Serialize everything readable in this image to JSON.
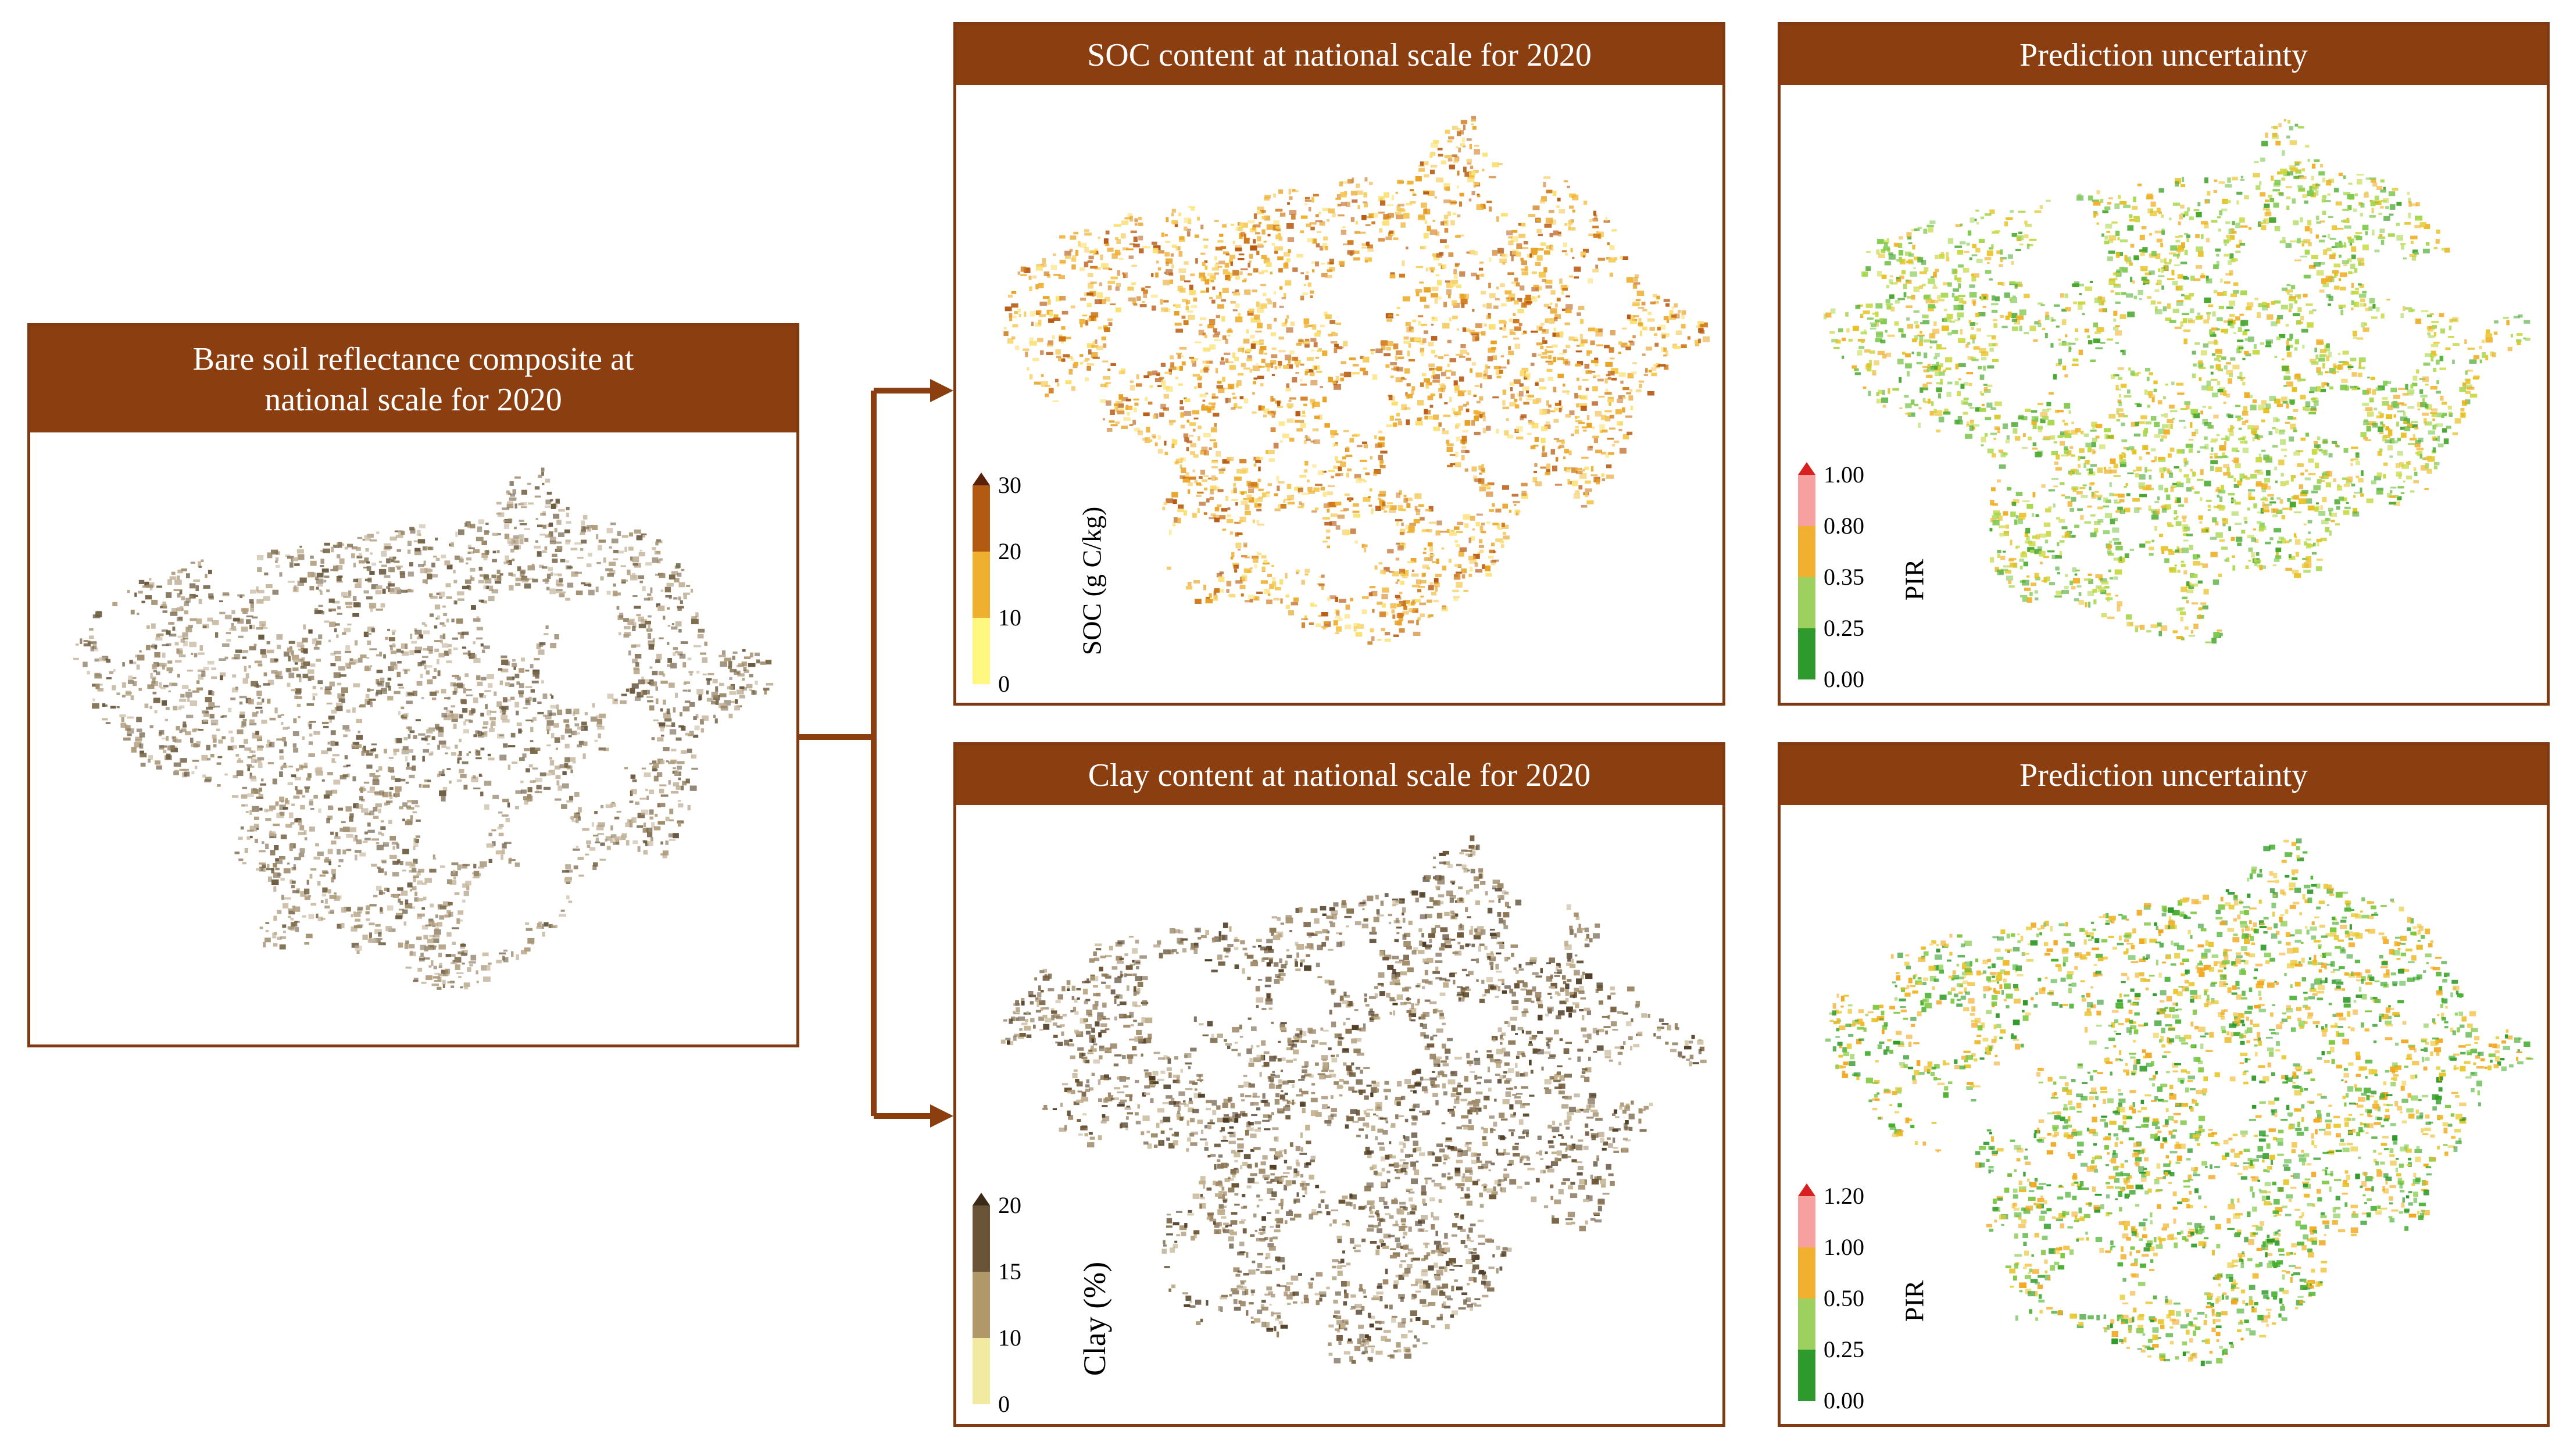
{
  "bare_soil": {
    "title_line1": "Bare soil reflectance composite at",
    "title_line2": "national scale for 2020",
    "palette": [
      "#9c8a6a",
      "#b09c7c",
      "#7c6a4c",
      "#c4b49a",
      "#6a5a40"
    ]
  },
  "soc": {
    "title": "SOC content at national scale for 2020",
    "legend_title": "SOC (g C/kg)",
    "ticks": [
      "30",
      "20",
      "10",
      "0"
    ],
    "colors": [
      "#b25a12",
      "#efb030",
      "#fff880"
    ],
    "tip_color": "#5a2008",
    "palette": [
      "#f0b030",
      "#e8a020",
      "#f5c850",
      "#d07818",
      "#fbe070",
      "#b85a12"
    ]
  },
  "soc_uncertainty": {
    "title": "Prediction uncertainty",
    "legend_title": "PIR",
    "ticks": [
      "1.00",
      "0.80",
      "0.35",
      "0.25",
      "0.00"
    ],
    "colors": [
      "#f7a0a0",
      "#f2b030",
      "#9ed060",
      "#2e9a2e"
    ],
    "tip_color": "#d82020",
    "palette": [
      "#7ec850",
      "#a8d850",
      "#e8c020",
      "#48a830",
      "#c8d840",
      "#f0b028"
    ]
  },
  "clay": {
    "title": "Clay content at national scale for 2020",
    "legend_title": "Clay (%)",
    "ticks": [
      "20",
      "15",
      "10",
      "0"
    ],
    "colors": [
      "#6a5438",
      "#b09868",
      "#f2eaa0"
    ],
    "tip_color": "#3c2a18",
    "palette": [
      "#8a7450",
      "#a08a68",
      "#6a5434",
      "#c0ae8a",
      "#4e3c24"
    ]
  },
  "clay_uncertainty": {
    "title": "Prediction uncertainty",
    "legend_title": "PIR",
    "ticks": [
      "1.20",
      "1.00",
      "0.50",
      "0.25",
      "0.00"
    ],
    "colors": [
      "#f7a0a0",
      "#f2b030",
      "#9ed060",
      "#2e9a2e"
    ],
    "tip_color": "#d82020",
    "palette": [
      "#48b030",
      "#7ec840",
      "#f0b828",
      "#e8c830",
      "#2e9a28",
      "#f2a820"
    ]
  },
  "accent_color": "#8b3e10"
}
